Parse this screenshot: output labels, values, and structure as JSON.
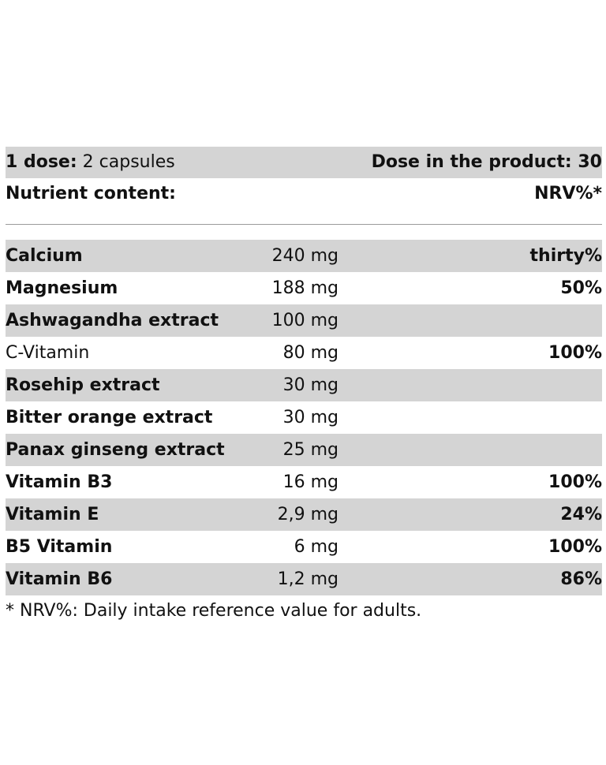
{
  "header": {
    "dose_label": "1 dose:",
    "dose_value": "2 capsules",
    "dose_in_product": "Dose in the product: 30",
    "nutrient_content": "Nutrient content:",
    "nrv_heading": "NRV%*"
  },
  "nutrients": [
    {
      "name": "Calcium",
      "amount": "240 mg",
      "nrv": "thirty%",
      "bold": true
    },
    {
      "name": "Magnesium",
      "amount": "188 mg",
      "nrv": "50%",
      "bold": true
    },
    {
      "name": "Ashwagandha extract",
      "amount": "100 mg",
      "nrv": "",
      "bold": true
    },
    {
      "name": "C-Vitamin",
      "amount": "80 mg",
      "nrv": "100%",
      "bold": false
    },
    {
      "name": "Rosehip extract",
      "amount": "30 mg",
      "nrv": "",
      "bold": true
    },
    {
      "name": "Bitter orange extract",
      "amount": "30 mg",
      "nrv": "",
      "bold": true
    },
    {
      "name": "Panax ginseng extract",
      "amount": "25 mg",
      "nrv": "",
      "bold": true
    },
    {
      "name": "Vitamin B3",
      "amount": "16 mg",
      "nrv": "100%",
      "bold": true
    },
    {
      "name": "Vitamin E",
      "amount": "2,9 mg",
      "nrv": "24%",
      "bold": true
    },
    {
      "name": "B5 Vitamin",
      "amount": "6 mg",
      "nrv": "100%",
      "bold": true
    },
    {
      "name": "Vitamin B6",
      "amount": "1,2 mg",
      "nrv": "86%",
      "bold": true
    }
  ],
  "footnote": "* NRV%: Daily intake reference value for adults.",
  "colors": {
    "row_shade": "#d4d4d4",
    "text": "#111111",
    "divider": "#9a9a9a"
  }
}
